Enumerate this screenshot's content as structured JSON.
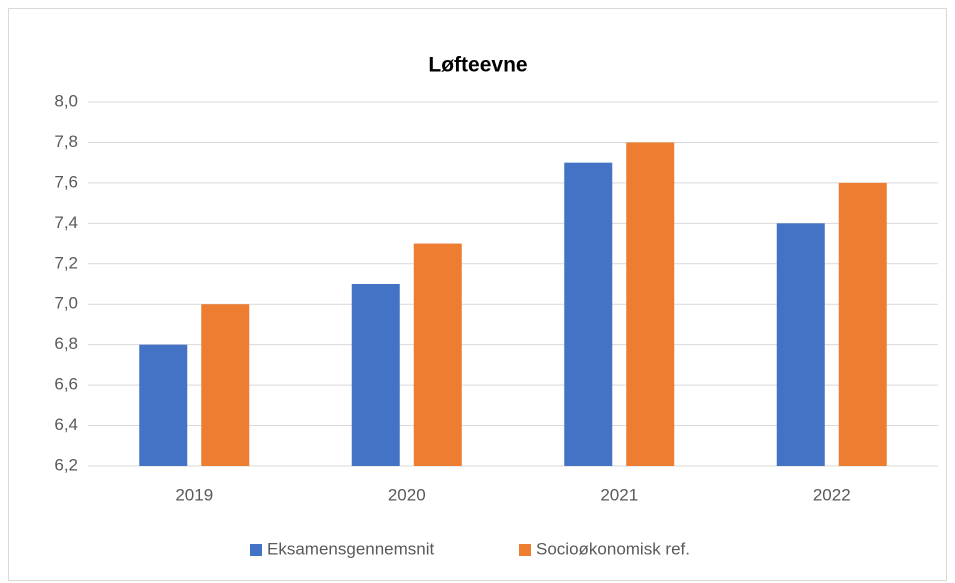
{
  "chart_data": {
    "type": "bar",
    "title": "Løfteevne",
    "categories": [
      "2019",
      "2020",
      "2021",
      "2022"
    ],
    "series": [
      {
        "name": "Eksamensgennemsnit",
        "color": "#4472c4",
        "values": [
          6.8,
          7.1,
          7.7,
          7.4
        ]
      },
      {
        "name": "Socioøkonomisk ref.",
        "color": "#ed7d31",
        "values": [
          7.0,
          7.3,
          7.8,
          7.6
        ]
      }
    ],
    "ylim": [
      6.2,
      8.0
    ],
    "yticks": [
      {
        "value": 6.2,
        "label": "6,2"
      },
      {
        "value": 6.4,
        "label": "6,4"
      },
      {
        "value": 6.6,
        "label": "6,6"
      },
      {
        "value": 6.8,
        "label": "6,8"
      },
      {
        "value": 7.0,
        "label": "7,0"
      },
      {
        "value": 7.2,
        "label": "7,2"
      },
      {
        "value": 7.4,
        "label": "7,4"
      },
      {
        "value": 7.6,
        "label": "7,6"
      },
      {
        "value": 7.8,
        "label": "7,8"
      },
      {
        "value": 8.0,
        "label": "8,0"
      }
    ],
    "grid": true,
    "legend": "bottom"
  }
}
